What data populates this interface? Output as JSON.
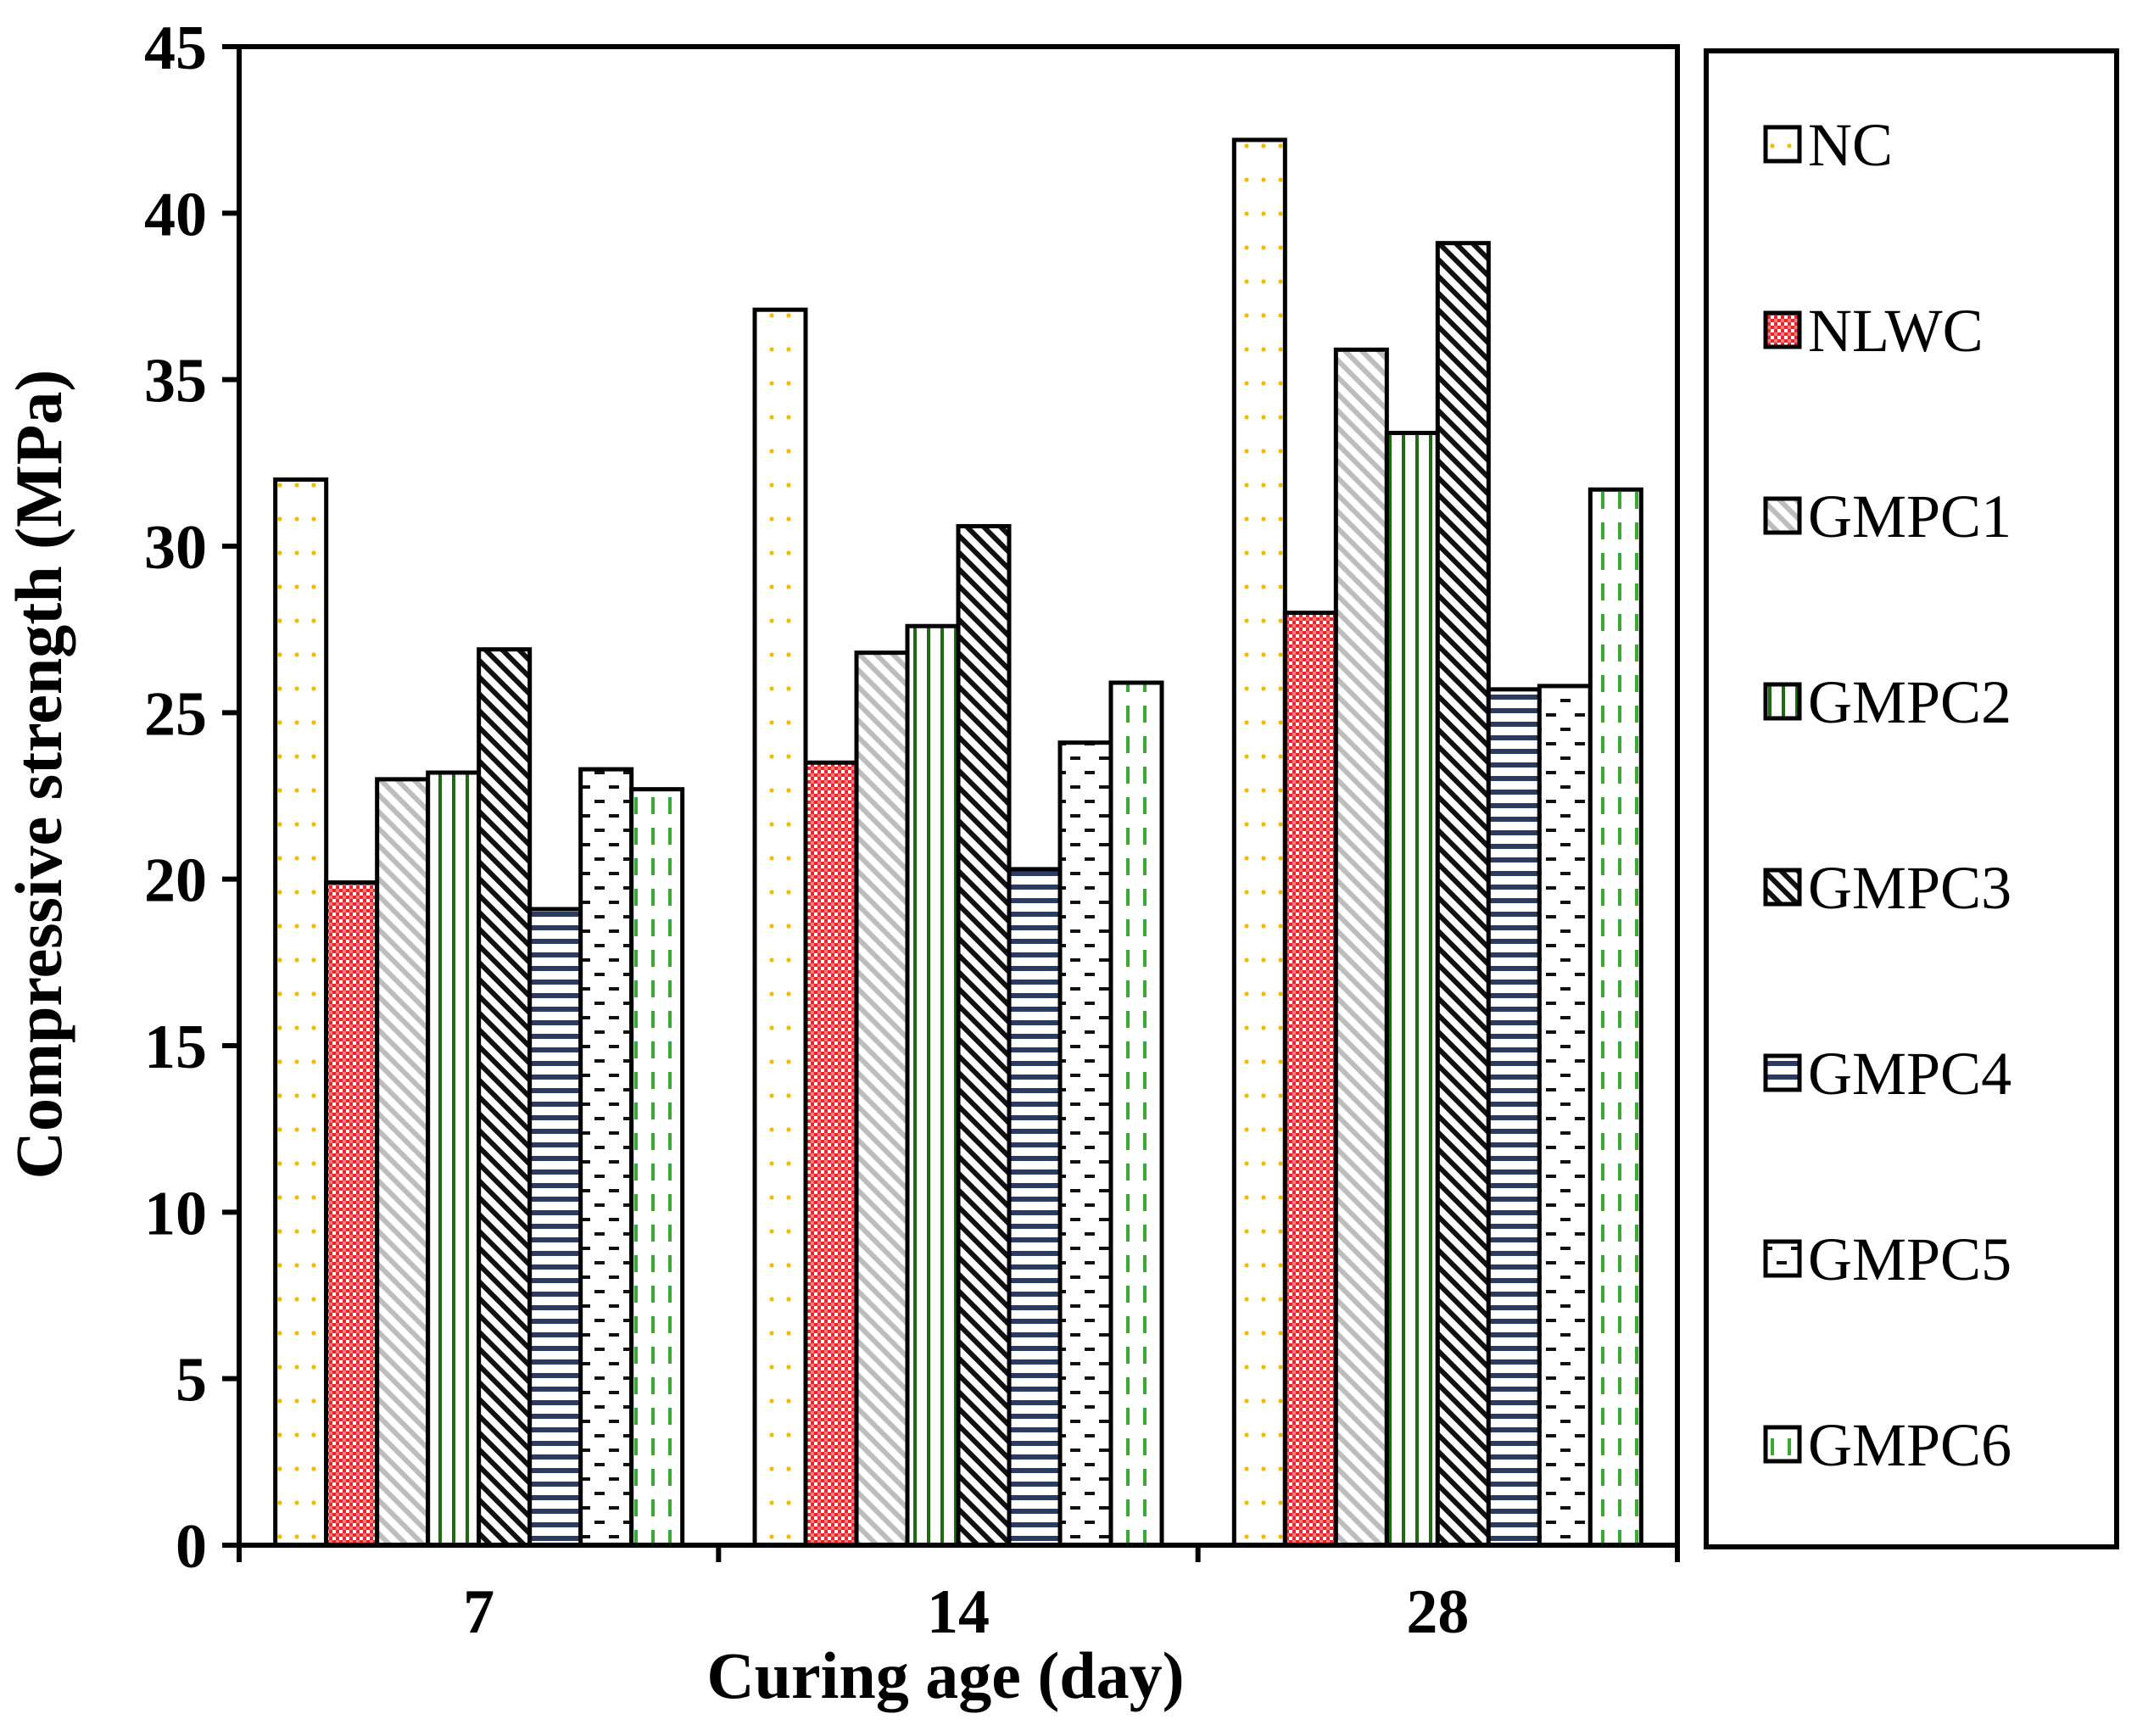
{
  "chart_data": {
    "type": "bar",
    "title": "",
    "xlabel": "Curing age (day)",
    "ylabel": "Compressive strength (MPa)",
    "ylim": [
      0,
      45
    ],
    "yticks": [
      "0",
      "5",
      "10",
      "15",
      "20",
      "25",
      "30",
      "35",
      "40",
      "45"
    ],
    "categories": [
      "7",
      "14",
      "28"
    ],
    "legend_position": "right",
    "series": [
      {
        "name": "NC",
        "values": [
          32.0,
          37.1,
          42.2
        ],
        "pattern": "dots-orange"
      },
      {
        "name": "NLWC",
        "values": [
          19.9,
          23.5,
          28.0
        ],
        "pattern": "red-checker"
      },
      {
        "name": "GMPC1",
        "values": [
          23.0,
          26.8,
          35.9
        ],
        "pattern": "grey-diagonal"
      },
      {
        "name": "GMPC2",
        "values": [
          23.2,
          27.6,
          33.4
        ],
        "pattern": "green-vertical"
      },
      {
        "name": "GMPC3",
        "values": [
          26.9,
          30.6,
          39.1
        ],
        "pattern": "black-diagonal"
      },
      {
        "name": "GMPC4",
        "values": [
          19.1,
          20.3,
          25.7
        ],
        "pattern": "navy-horizontal"
      },
      {
        "name": "GMPC5",
        "values": [
          23.3,
          24.1,
          25.8
        ],
        "pattern": "black-dashes"
      },
      {
        "name": "GMPC6",
        "values": [
          22.7,
          25.9,
          31.7
        ],
        "pattern": "green-dashed-vertical"
      }
    ],
    "colors": {
      "axis": "#000000",
      "orange_dot": "#f5b800",
      "red": "#e8262a",
      "grey": "#bdbdbd",
      "green": "#1e6b12",
      "navy": "#2b3b63",
      "light_green": "#3aaa35"
    }
  }
}
